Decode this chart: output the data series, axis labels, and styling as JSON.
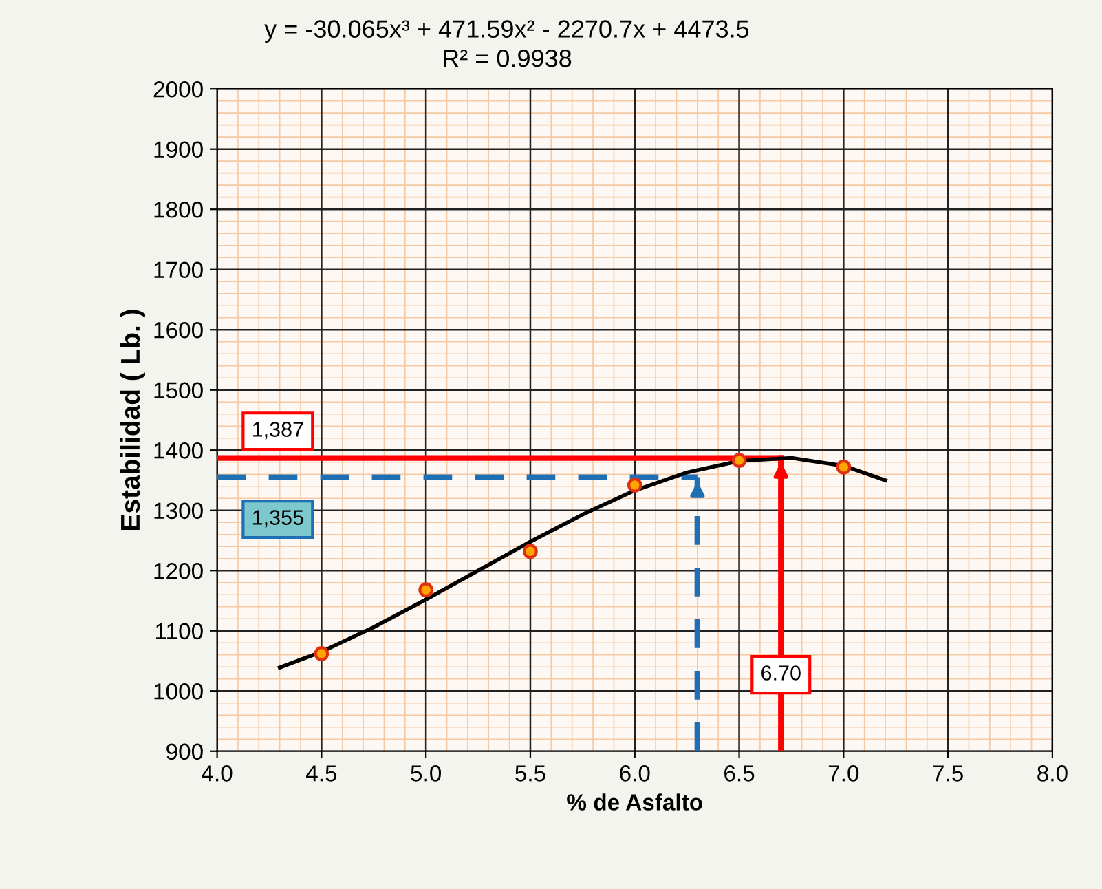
{
  "chart_data": {
    "type": "scatter",
    "xlabel": "% de Asfalto",
    "ylabel": "Estabilidad ( Lb. )",
    "xlim": [
      4.0,
      8.0
    ],
    "xticks": [
      {
        "value": 4.0,
        "label": "4.0"
      },
      {
        "value": 4.5,
        "label": "4.5"
      },
      {
        "value": 5.0,
        "label": "5.0"
      },
      {
        "value": 5.5,
        "label": "5.5"
      },
      {
        "value": 6.0,
        "label": "6.0"
      },
      {
        "value": 6.5,
        "label": "6.5"
      },
      {
        "value": 7.0,
        "label": "7.0"
      },
      {
        "value": 7.5,
        "label": "7.5"
      },
      {
        "value": 8.0,
        "label": "8.0"
      }
    ],
    "ylim": [
      900,
      2000
    ],
    "yticks": [
      900,
      1000,
      1100,
      1200,
      1300,
      1400,
      1500,
      1600,
      1700,
      1800,
      1900,
      2000
    ],
    "grid": true,
    "series": [
      {
        "marker": "circle",
        "color": "#ffa500",
        "x": [
          4.5,
          5.0,
          5.5,
          6.0,
          6.5,
          7.0
        ],
        "values": [
          1062,
          1168,
          1232,
          1342,
          1383,
          1372
        ]
      },
      {
        "type": "line",
        "color": "#000000",
        "x": [
          4.3,
          4.5,
          4.75,
          5.0,
          5.25,
          5.5,
          5.75,
          6.0,
          6.25,
          6.5,
          6.75,
          7.0,
          7.2
        ],
        "values": [
          1039,
          1065,
          1106,
          1152,
          1200,
          1248,
          1293,
          1333,
          1363,
          1382,
          1387,
          1374,
          1350
        ]
      }
    ],
    "ref_lines": [
      {
        "axis": "y",
        "value": 1387,
        "label": "1,387",
        "color": "#ff0000",
        "line_style": "solid"
      },
      {
        "axis": "y",
        "value": 1355,
        "label": "1,355",
        "color": "#1f6fb5",
        "line_style": "dashed"
      },
      {
        "axis": "x",
        "value": 6.7,
        "label": "6.70",
        "color": "#ff0000",
        "line_style": "solid"
      },
      {
        "axis": "x",
        "value": 6.3,
        "color": "#1f6fb5",
        "line_style": "dashed"
      }
    ],
    "annotations": [
      "y = -30.065x³ + 471.59x² - 2270.7x + 4473.5",
      "R² = 0.9938"
    ]
  }
}
